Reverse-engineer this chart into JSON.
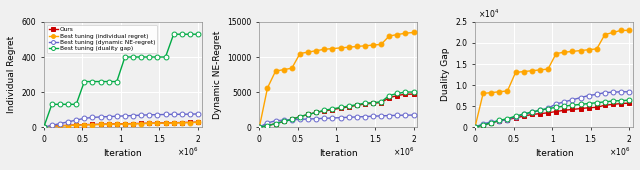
{
  "x_ticks": [
    0,
    500000,
    1000000,
    1500000,
    2000000
  ],
  "x_tick_labels": [
    "0",
    "0.5",
    "1",
    "1.5",
    "2"
  ],
  "x_exp": "×10⁶",
  "legend_labels": [
    "Ours",
    "Best tuning (individual regret)",
    "Best tuning (dynamic NE-regret)",
    "Best tuning (duality gap)"
  ],
  "colors": [
    "#cc0000",
    "#ffa500",
    "#6666cc",
    "#00aa44"
  ],
  "markers": [
    "s",
    "o",
    "o",
    "o"
  ],
  "markerfacecolors": [
    "#cc0000",
    "#ffa500",
    "white",
    "white"
  ],
  "plot1": {
    "ylabel": "Individual Regret",
    "ylim": [
      0,
      600
    ],
    "yticks": [
      0,
      200,
      400,
      600
    ],
    "series": {
      "ours": [
        0,
        5,
        8,
        10,
        12,
        14,
        15,
        16,
        17,
        18,
        19,
        20,
        21,
        22,
        23,
        24,
        25,
        26,
        27,
        28
      ],
      "ind_regret": [
        0,
        4,
        7,
        9,
        11,
        13,
        14,
        15,
        16,
        17,
        18,
        19,
        20,
        21,
        22,
        23,
        24,
        25,
        26,
        27
      ],
      "dyn_ne": [
        0,
        10,
        20,
        30,
        40,
        50,
        55,
        58,
        60,
        62,
        64,
        66,
        68,
        70,
        71,
        72,
        73,
        73,
        74,
        75
      ],
      "duality": [
        0,
        130,
        130,
        130,
        130,
        260,
        260,
        260,
        260,
        260,
        400,
        400,
        400,
        400,
        400,
        400,
        530,
        530,
        530,
        530
      ]
    }
  },
  "plot2": {
    "ylabel": "Dynamic NE-Regret",
    "ylim": [
      0,
      15000
    ],
    "yticks": [
      0,
      5000,
      10000,
      15000
    ],
    "series": {
      "ours": [
        0,
        200,
        500,
        800,
        1100,
        1500,
        1800,
        2100,
        2300,
        2500,
        2700,
        2900,
        3100,
        3300,
        3400,
        3500,
        4200,
        4500,
        4700,
        4700
      ],
      "ind_regret": [
        0,
        5600,
        8000,
        8200,
        8400,
        10500,
        10700,
        10900,
        11100,
        11200,
        11300,
        11400,
        11500,
        11600,
        11700,
        11800,
        13000,
        13200,
        13400,
        13500
      ],
      "dyn_ne": [
        0,
        600,
        900,
        1000,
        1050,
        1100,
        1150,
        1200,
        1250,
        1300,
        1350,
        1400,
        1450,
        1500,
        1550,
        1600,
        1650,
        1680,
        1700,
        1720
      ],
      "duality": [
        0,
        200,
        500,
        800,
        1100,
        1500,
        1800,
        2100,
        2400,
        2600,
        2800,
        3000,
        3200,
        3400,
        3500,
        3600,
        4500,
        4800,
        5000,
        5000
      ]
    }
  },
  "plot3": {
    "ylabel": "Duality Gap",
    "ylim": [
      0,
      25000
    ],
    "yticks": [
      0,
      5000,
      10000,
      15000,
      20000,
      25000
    ],
    "yexp": "×10⁴",
    "series": {
      "ours": [
        0,
        500,
        1000,
        1500,
        1800,
        2200,
        2600,
        3000,
        3200,
        3400,
        3700,
        4000,
        4200,
        4400,
        4600,
        4700,
        5200,
        5400,
        5600,
        5700
      ],
      "ind_regret": [
        0,
        8000,
        8200,
        8400,
        8600,
        13000,
        13200,
        13400,
        13600,
        13800,
        17500,
        17800,
        18000,
        18200,
        18400,
        18600,
        22000,
        22500,
        23000,
        23000
      ],
      "dyn_ne": [
        0,
        800,
        1200,
        1500,
        1800,
        2500,
        3000,
        3500,
        4000,
        4500,
        5500,
        6000,
        6500,
        7000,
        7500,
        7800,
        8200,
        8300,
        8400,
        8400
      ],
      "duality": [
        0,
        500,
        1000,
        1600,
        2000,
        2600,
        3100,
        3600,
        4000,
        4400,
        4700,
        5000,
        5200,
        5400,
        5600,
        5800,
        6000,
        6200,
        6300,
        6400
      ]
    }
  }
}
